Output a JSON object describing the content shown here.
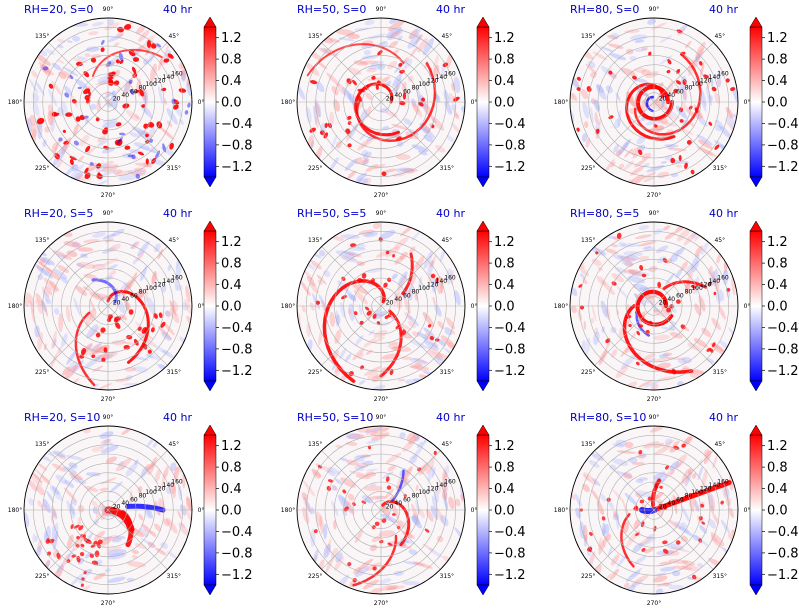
{
  "chart_data": {
    "type": "heatmap",
    "grid": "3x3",
    "subtype": "polar filled contour",
    "angular_ticks": [
      "0°",
      "45°",
      "90°",
      "135°",
      "180°",
      "225°",
      "270°",
      "315°"
    ],
    "radial_ticks": [
      20,
      40,
      60,
      80,
      100,
      120,
      140,
      160
    ],
    "radial_range": [
      0,
      180
    ],
    "colormap": "bwr",
    "colorbar": {
      "range": [
        -1.4,
        1.4
      ],
      "ticks": [
        1.2,
        0.8,
        0.4,
        0.0,
        -0.4,
        -0.8,
        -1.2
      ],
      "tick_labels": [
        "1.2",
        "0.8",
        "0.4",
        "0.0",
        "−0.4",
        "−0.8",
        "−1.2"
      ],
      "extend": "both"
    },
    "colors": {
      "title": "#0000cc",
      "positive": "#ff0000",
      "negative": "#0000ff",
      "neutral": "#ffffff"
    },
    "panels": [
      {
        "title": "RH=20, S=0",
        "time": "40 hr",
        "rh": 20,
        "shear": 0,
        "pattern": "scattered"
      },
      {
        "title": "RH=50, S=0",
        "time": "40 hr",
        "rh": 50,
        "shear": 0,
        "pattern": "ring"
      },
      {
        "title": "RH=80, S=0",
        "time": "40 hr",
        "rh": 80,
        "shear": 0,
        "pattern": "eyewall"
      },
      {
        "title": "RH=20, S=5",
        "time": "40 hr",
        "rh": 20,
        "shear": 5,
        "pattern": "spiral-south"
      },
      {
        "title": "RH=50, S=5",
        "time": "40 hr",
        "rh": 50,
        "shear": 5,
        "pattern": "spiral-band"
      },
      {
        "title": "RH=80, S=5",
        "time": "40 hr",
        "rh": 80,
        "shear": 5,
        "pattern": "eyewall-spiral"
      },
      {
        "title": "RH=20, S=10",
        "time": "40 hr",
        "rh": 20,
        "shear": 10,
        "pattern": "southeast-blob"
      },
      {
        "title": "RH=50, S=10",
        "time": "40 hr",
        "rh": 50,
        "shear": 10,
        "pattern": "weak-spiral"
      },
      {
        "title": "RH=80, S=10",
        "time": "40 hr",
        "rh": 80,
        "shear": 10,
        "pattern": "northeast-band"
      }
    ]
  }
}
